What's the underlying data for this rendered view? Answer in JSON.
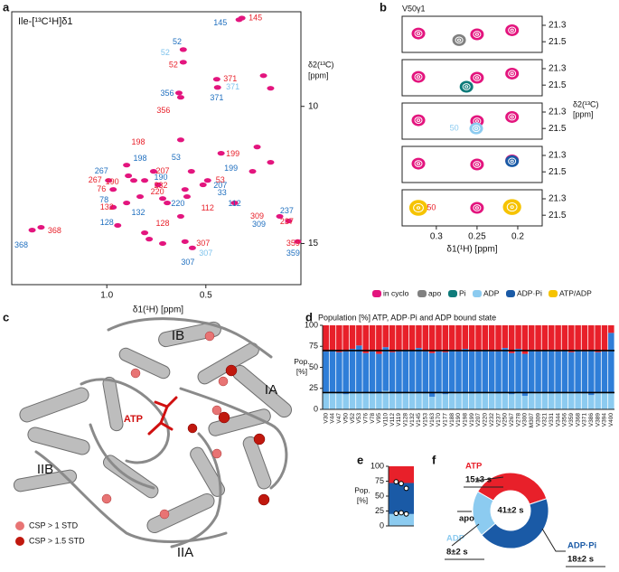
{
  "panel_labels": [
    "a",
    "b",
    "c",
    "d",
    "e",
    "f"
  ],
  "structure": {
    "domains": [
      "IB",
      "IA",
      "IIB",
      "IIA"
    ],
    "ligand": "ATP",
    "legend": [
      {
        "name": "CSP > 1 STD",
        "color": "#e87474"
      },
      {
        "name": "CSP > 1.5 STD",
        "color": "#c0180e"
      }
    ]
  },
  "chart_data": [
    {
      "type": "scatter",
      "title": "Ile-[¹³C¹H]δ1",
      "xlabel": "δ1(¹H) [ppm]",
      "ylabel": [
        "δ2(¹³C)",
        "[ppm]"
      ],
      "xlim": [
        1.48,
        0.02
      ],
      "ylim": [
        6.55,
        16.5
      ],
      "xticks": [
        {
          "value": 1,
          "label": "1.0"
        },
        0.5
      ],
      "yticks": [
        10,
        15
      ],
      "color": "#e3157e",
      "x": [
        0.332,
        0.318,
        0.614,
        0.614,
        0.445,
        0.441,
        0.636,
        0.627,
        0.209,
        0.173,
        0.423,
        0.514,
        0.491,
        0.605,
        0.595,
        0.573,
        0.9,
        0.891,
        0.864,
        0.991,
        0.968,
        0.809,
        0.764,
        0.741,
        0.718,
        0.832,
        0.9,
        0.968,
        0.945,
        0.809,
        0.786,
        0.695,
        0.627,
        0.568,
        0.605,
        0.718,
        1.377,
        1.332,
        0.127,
        0.082,
        0.036,
        0.241,
        0.173,
        0.264,
        0.355,
        0.627
      ],
      "y": [
        6.84,
        6.78,
        7.93,
        8.39,
        9.01,
        9.31,
        9.51,
        9.67,
        8.88,
        9.34,
        11.71,
        12.86,
        12.7,
        13.03,
        13.29,
        12.37,
        12.14,
        12.53,
        12.7,
        12.7,
        13.03,
        12.7,
        12.37,
        12.86,
        13.36,
        13.29,
        13.52,
        13.68,
        14.34,
        14.61,
        14.84,
        13.52,
        14.01,
        15.16,
        14.93,
        15.0,
        14.51,
        14.41,
        14.01,
        14.18,
        14.93,
        11.48,
        12.04,
        12.37,
        13.52,
        11.22
      ],
      "annotations": [
        {
          "text": "145",
          "x": 0.427,
          "y": 6.97,
          "color": "#1f6fbf"
        },
        {
          "text": "145",
          "x": 0.25,
          "y": 6.78,
          "color": "#e8202a"
        },
        {
          "text": "52",
          "x": 0.645,
          "y": 7.66,
          "color": "#1f6fbf"
        },
        {
          "text": "52",
          "x": 0.705,
          "y": 8.06,
          "color": "#7ec3ec"
        },
        {
          "text": "52",
          "x": 0.664,
          "y": 8.49,
          "color": "#e8202a"
        },
        {
          "text": "371",
          "x": 0.377,
          "y": 9.01,
          "color": "#e8202a"
        },
        {
          "text": "371",
          "x": 0.364,
          "y": 9.31,
          "color": "#7ec3ec"
        },
        {
          "text": "371",
          "x": 0.445,
          "y": 9.7,
          "color": "#1f6fbf"
        },
        {
          "text": "356",
          "x": 0.695,
          "y": 9.54,
          "color": "#1f6fbf"
        },
        {
          "text": "356",
          "x": 0.714,
          "y": 10.16,
          "color": "#e8202a"
        },
        {
          "text": "198",
          "x": 0.841,
          "y": 11.32,
          "color": "#e8202a"
        },
        {
          "text": "198",
          "x": 0.832,
          "y": 11.91,
          "color": "#1f6fbf"
        },
        {
          "text": "53",
          "x": 0.65,
          "y": 11.88,
          "color": "#1f6fbf"
        },
        {
          "text": "199",
          "x": 0.364,
          "y": 11.74,
          "color": "#e8202a"
        },
        {
          "text": "199",
          "x": 0.373,
          "y": 12.27,
          "color": "#1f6fbf"
        },
        {
          "text": "207",
          "x": 0.718,
          "y": 12.37,
          "color": "#e8202a"
        },
        {
          "text": "53",
          "x": 0.427,
          "y": 12.7,
          "color": "#e8202a"
        },
        {
          "text": "267",
          "x": 1.027,
          "y": 12.37,
          "color": "#1f6fbf"
        },
        {
          "text": "190",
          "x": 0.727,
          "y": 12.6,
          "color": "#1f6fbf"
        },
        {
          "text": "207",
          "x": 0.427,
          "y": 12.89,
          "color": "#1f6fbf"
        },
        {
          "text": "232",
          "x": 0.727,
          "y": 12.89,
          "color": "#e8202a"
        },
        {
          "text": "33",
          "x": 0.418,
          "y": 13.16,
          "color": "#1f6fbf"
        },
        {
          "text": "267",
          "x": 1.059,
          "y": 12.7,
          "color": "#e8202a"
        },
        {
          "text": "190",
          "x": 0.973,
          "y": 12.76,
          "color": "#e8202a"
        },
        {
          "text": "76",
          "x": 1.027,
          "y": 13.03,
          "color": "#e8202a"
        },
        {
          "text": "220",
          "x": 0.745,
          "y": 13.13,
          "color": "#e8202a"
        },
        {
          "text": "78",
          "x": 1.014,
          "y": 13.42,
          "color": "#1f6fbf"
        },
        {
          "text": "220",
          "x": 0.641,
          "y": 13.55,
          "color": "#1f6fbf"
        },
        {
          "text": "112",
          "x": 0.355,
          "y": 13.55,
          "color": "#1f6fbf"
        },
        {
          "text": "132",
          "x": 1.0,
          "y": 13.68,
          "color": "#e8202a"
        },
        {
          "text": "112",
          "x": 0.491,
          "y": 13.72,
          "color": "#e8202a"
        },
        {
          "text": "132",
          "x": 0.841,
          "y": 13.88,
          "color": "#1f6fbf"
        },
        {
          "text": "309",
          "x": 0.241,
          "y": 14.01,
          "color": "#e8202a"
        },
        {
          "text": "237",
          "x": 0.091,
          "y": 13.82,
          "color": "#1f6fbf"
        },
        {
          "text": "309",
          "x": 0.232,
          "y": 14.31,
          "color": "#1f6fbf"
        },
        {
          "text": "237",
          "x": 0.091,
          "y": 14.21,
          "color": "#e8202a"
        },
        {
          "text": "368",
          "x": 1.264,
          "y": 14.54,
          "color": "#e8202a"
        },
        {
          "text": "368",
          "x": 1.432,
          "y": 15.07,
          "color": "#1f6fbf"
        },
        {
          "text": "128",
          "x": 1.0,
          "y": 14.24,
          "color": "#1f6fbf"
        },
        {
          "text": "128",
          "x": 0.718,
          "y": 14.28,
          "color": "#e8202a"
        },
        {
          "text": "307",
          "x": 0.514,
          "y": 15.0,
          "color": "#e8202a"
        },
        {
          "text": "307",
          "x": 0.5,
          "y": 15.36,
          "color": "#7ec3ec"
        },
        {
          "text": "307",
          "x": 0.591,
          "y": 15.69,
          "color": "#1f6fbf"
        },
        {
          "text": "359",
          "x": 0.059,
          "y": 15.0,
          "color": "#e8202a"
        },
        {
          "text": "359",
          "x": 0.059,
          "y": 15.36,
          "color": "#1f6fbf"
        }
      ]
    },
    {
      "type": "spectra",
      "title": "V50γ1",
      "xlabel": "δ1(¹H) [ppm]",
      "ylabel": [
        "δ2(¹³C)",
        "[ppm]"
      ],
      "xlim": [
        0.342,
        0.17
      ],
      "ylim": [
        21.19,
        21.63
      ],
      "xticks": [
        0.3,
        0.25,
        0.2
      ],
      "yticks": [
        21.3,
        21.5
      ],
      "panels": [
        {
          "peaks": [
            {
              "x": 0.322,
              "y": 21.4,
              "color": "#e3157e"
            },
            {
              "x": 0.272,
              "y": 21.48,
              "color": "#808080"
            },
            {
              "x": 0.25,
              "y": 21.41,
              "color": "#e3157e"
            },
            {
              "x": 0.207,
              "y": 21.36,
              "color": "#e3157e"
            }
          ],
          "annotations": []
        },
        {
          "peaks": [
            {
              "x": 0.322,
              "y": 21.4,
              "color": "#e3157e"
            },
            {
              "x": 0.25,
              "y": 21.41,
              "color": "#e3157e"
            },
            {
              "x": 0.263,
              "y": 21.52,
              "color": "#0e7b7a"
            },
            {
              "x": 0.207,
              "y": 21.36,
              "color": "#e3157e"
            }
          ],
          "annotations": []
        },
        {
          "peaks": [
            {
              "x": 0.322,
              "y": 21.4,
              "color": "#e3157e"
            },
            {
              "x": 0.25,
              "y": 21.41,
              "color": "#e3157e"
            },
            {
              "x": 0.251,
              "y": 21.5,
              "color": "#8ccbf0"
            },
            {
              "x": 0.207,
              "y": 21.36,
              "color": "#e3157e"
            }
          ],
          "annotations": [
            {
              "text": "50",
              "x": 0.278,
              "y": 21.5,
              "color": "#8ccbf0"
            }
          ]
        },
        {
          "peaks": [
            {
              "x": 0.322,
              "y": 21.4,
              "color": "#e3157e"
            },
            {
              "x": 0.25,
              "y": 21.41,
              "color": "#e3157e"
            },
            {
              "x": 0.207,
              "y": 21.36,
              "color": "#e3157e"
            },
            {
              "x": 0.207,
              "y": 21.37,
              "color": "#1a5aa6"
            }
          ],
          "annotations": []
        },
        {
          "peaks": [
            {
              "x": 0.322,
              "y": 21.41,
              "color": "#f6c300"
            },
            {
              "x": 0.25,
              "y": 21.41,
              "color": "#e3157e"
            },
            {
              "x": 0.207,
              "y": 21.4,
              "color": "#f6c300"
            }
          ],
          "annotations": [
            {
              "text": "50",
              "x": 0.306,
              "y": 21.41,
              "color": "#e8202a"
            }
          ]
        }
      ],
      "legend": [
        {
          "name": "in cyclo",
          "color": "#e3157e"
        },
        {
          "name": "apo",
          "color": "#808080"
        },
        {
          "name": "Pi",
          "color": "#0e7b7a"
        },
        {
          "name": "ADP",
          "color": "#8ccbf0"
        },
        {
          "name": "ADP·Pi",
          "color": "#1a5aa6"
        },
        {
          "name": "ATP/ADP",
          "color": "#f6c300"
        }
      ]
    },
    {
      "type": "stacked_bar",
      "title": "Population [%] ATP, ADP·Pi and ADP bound state",
      "ylabel": [
        "Pop.",
        "[%]"
      ],
      "categories": [
        "V30",
        "V44",
        "V47",
        "V50",
        "V52",
        "V53",
        "V76",
        "V78",
        "V95",
        "V110",
        "V112",
        "V119",
        "V128",
        "V132",
        "V145",
        "V153",
        "V163",
        "V170",
        "V177",
        "V188",
        "V190",
        "V198",
        "V199",
        "V207",
        "V220",
        "V232",
        "V237",
        "V250",
        "V267",
        "V278",
        "V300",
        "M307",
        "V309",
        "V321",
        "V331",
        "V344",
        "V356",
        "V359",
        "V368",
        "V371",
        "V386",
        "V389",
        "V394",
        "V400"
      ],
      "series": [
        {
          "color": "#8ccbf0",
          "values": [
            21,
            20,
            19,
            18,
            20,
            21,
            20,
            19,
            20,
            22,
            20,
            19,
            20,
            21,
            20,
            19,
            15,
            20,
            18,
            20,
            21,
            20,
            19,
            20,
            20,
            21,
            19,
            20,
            18,
            20,
            16,
            20,
            21,
            20,
            19,
            20,
            20,
            21,
            20,
            19,
            17,
            20,
            20,
            19
          ]
        },
        {
          "color": "#2f7ed8",
          "values": [
            48,
            50,
            49,
            51,
            52,
            55,
            47,
            50,
            46,
            52,
            48,
            50,
            51,
            49,
            53,
            50,
            52,
            49,
            50,
            51,
            48,
            52,
            50,
            49,
            51,
            48,
            50,
            53,
            49,
            52,
            50,
            51,
            48,
            50,
            52,
            49,
            50,
            47,
            51,
            50,
            53,
            48,
            49,
            72
          ]
        },
        {
          "color": "#e8202a",
          "values": [
            31,
            30,
            32,
            31,
            28,
            24,
            33,
            31,
            34,
            26,
            32,
            31,
            29,
            30,
            27,
            31,
            33,
            31,
            32,
            29,
            31,
            28,
            31,
            31,
            29,
            31,
            31,
            27,
            33,
            28,
            34,
            29,
            31,
            30,
            29,
            31,
            30,
            32,
            29,
            31,
            30,
            32,
            31,
            9
          ]
        }
      ],
      "ylim": [
        0,
        100
      ],
      "yticks": [
        0,
        25,
        50,
        75,
        100
      ],
      "hlines": [
        20,
        70
      ]
    },
    {
      "type": "stacked_bar",
      "ylabel": [
        "Pop.",
        "[%]"
      ],
      "series": [
        {
          "color": "#8ccbf0",
          "values": [
            20
          ]
        },
        {
          "color": "#1a5aa6",
          "values": [
            52
          ]
        },
        {
          "color": "#e8202a",
          "values": [
            28
          ]
        }
      ],
      "points": [
        21,
        22,
        20,
        74,
        71,
        63
      ],
      "ylim": [
        0,
        100
      ],
      "yticks": [
        0,
        25,
        50,
        75,
        100
      ]
    },
    {
      "type": "donut",
      "categories": [
        "ATP",
        "ADP·Pi",
        "ADP"
      ],
      "values": [
        15,
        18,
        8
      ],
      "value_labels": [
        "15±3 s",
        "18±2 s",
        "8±2 s"
      ],
      "colors": [
        "#e8202a",
        "#1a5aa6",
        "#8ccbf0"
      ],
      "center_label": "41±2 s",
      "annotations": [
        "apo"
      ]
    }
  ]
}
